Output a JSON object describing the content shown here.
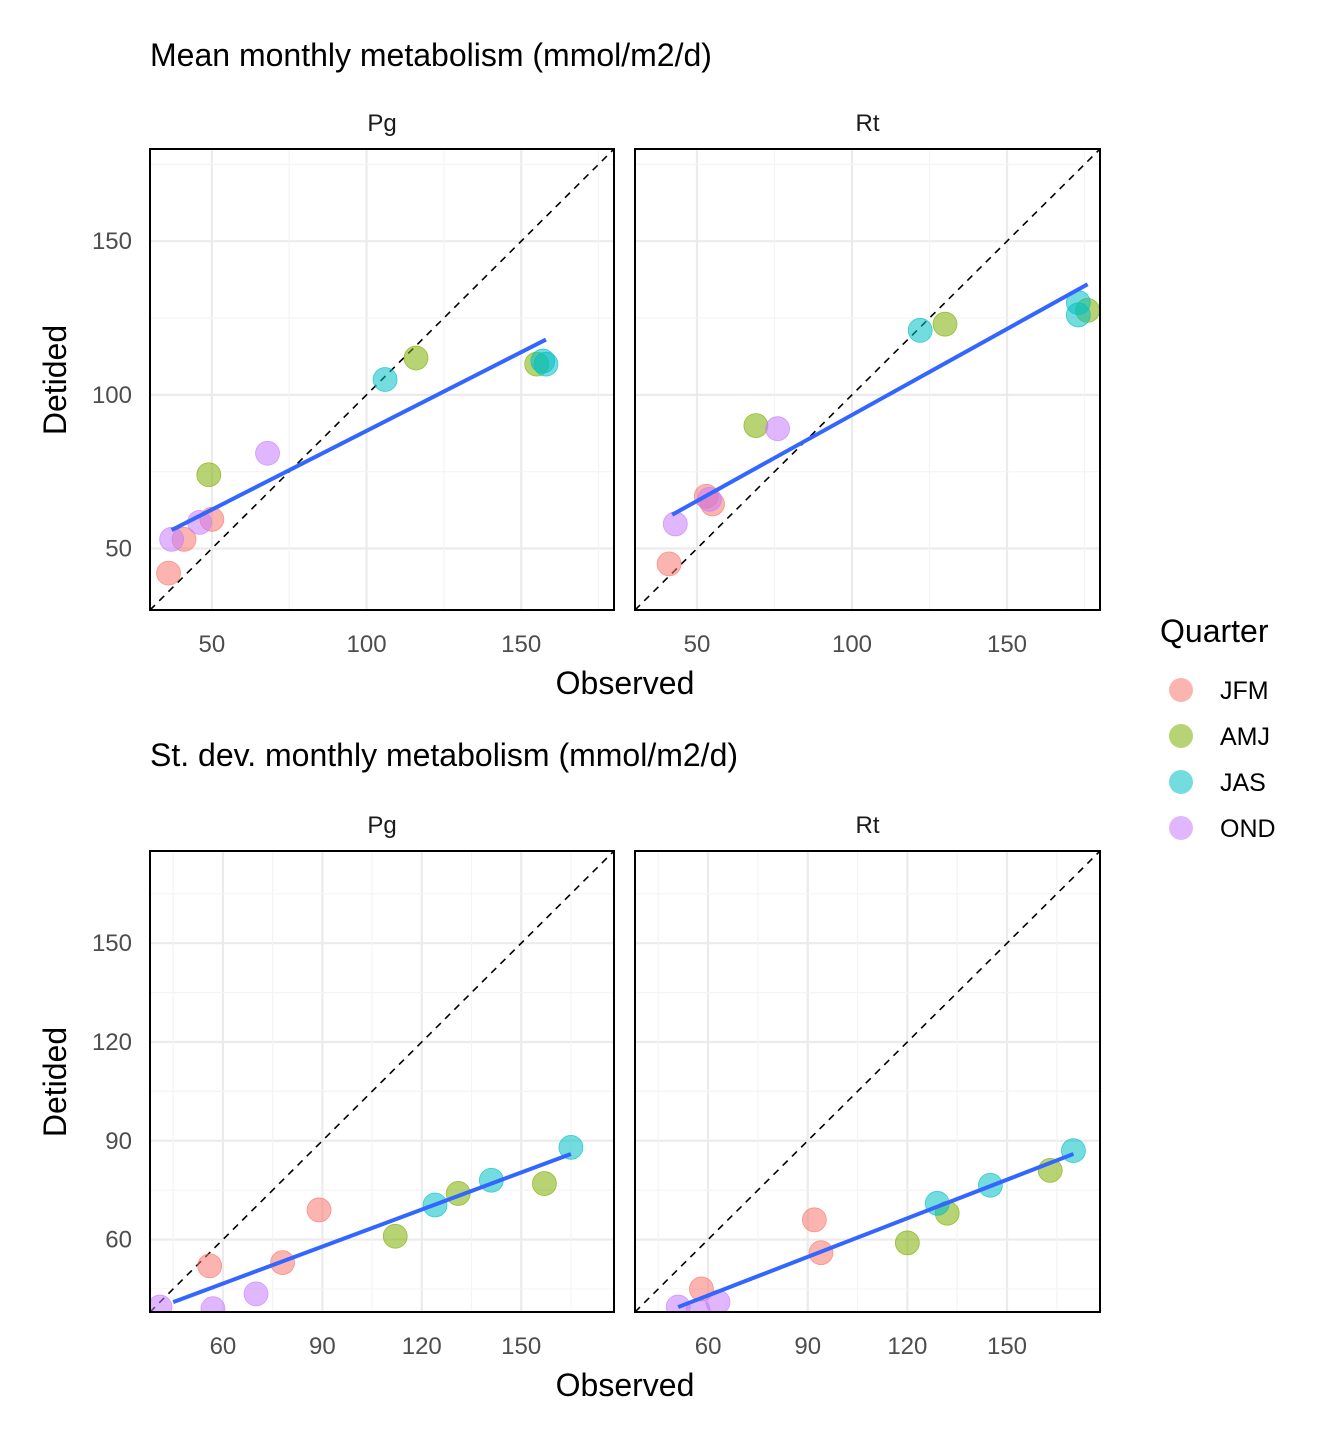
{
  "legend": {
    "title": "Quarter",
    "items": [
      {
        "label": "JFM",
        "color": "#F8766D"
      },
      {
        "label": "AMJ",
        "color": "#7CAE00"
      },
      {
        "label": "JAS",
        "color": "#00BFC4"
      },
      {
        "label": "OND",
        "color": "#C77CFF"
      }
    ]
  },
  "chart_data": [
    {
      "type": "scatter",
      "title": "Mean monthly metabolism (mmol/m2/d)",
      "xlabel": "Observed",
      "ylabel": "Detided",
      "facets": [
        "Pg",
        "Rt"
      ],
      "xlim": [
        30,
        180
      ],
      "ylim": [
        30,
        180
      ],
      "xticks": [
        50,
        100,
        150
      ],
      "yticks": [
        50,
        100,
        150
      ],
      "reference_line": "y = x (dashed)",
      "fit_line": "linear (blue)",
      "panels": [
        {
          "facet": "Pg",
          "points": [
            {
              "x": 36,
              "y": 42,
              "quarter": "JFM"
            },
            {
              "x": 41,
              "y": 53,
              "quarter": "JFM"
            },
            {
              "x": 50,
              "y": 59.5,
              "quarter": "JFM"
            },
            {
              "x": 49,
              "y": 74,
              "quarter": "AMJ"
            },
            {
              "x": 116,
              "y": 112,
              "quarter": "AMJ"
            },
            {
              "x": 155,
              "y": 110,
              "quarter": "AMJ"
            },
            {
              "x": 106,
              "y": 105,
              "quarter": "JAS"
            },
            {
              "x": 157,
              "y": 111,
              "quarter": "JAS"
            },
            {
              "x": 158,
              "y": 110,
              "quarter": "JAS"
            },
            {
              "x": 37,
              "y": 53,
              "quarter": "OND"
            },
            {
              "x": 46,
              "y": 58.5,
              "quarter": "OND"
            },
            {
              "x": 68,
              "y": 81,
              "quarter": "OND"
            }
          ],
          "fit": [
            {
              "x": 37,
              "y": 56
            },
            {
              "x": 158,
              "y": 118
            }
          ]
        },
        {
          "facet": "Rt",
          "points": [
            {
              "x": 41,
              "y": 45,
              "quarter": "JFM"
            },
            {
              "x": 53,
              "y": 67,
              "quarter": "JFM"
            },
            {
              "x": 55,
              "y": 64.5,
              "quarter": "JFM"
            },
            {
              "x": 69,
              "y": 90,
              "quarter": "AMJ"
            },
            {
              "x": 130,
              "y": 123,
              "quarter": "AMJ"
            },
            {
              "x": 176,
              "y": 127.5,
              "quarter": "AMJ"
            },
            {
              "x": 122,
              "y": 121,
              "quarter": "JAS"
            },
            {
              "x": 173,
              "y": 130,
              "quarter": "JAS"
            },
            {
              "x": 173,
              "y": 126,
              "quarter": "JAS"
            },
            {
              "x": 43,
              "y": 58,
              "quarter": "OND"
            },
            {
              "x": 54,
              "y": 66,
              "quarter": "OND"
            },
            {
              "x": 76,
              "y": 89,
              "quarter": "OND"
            }
          ],
          "fit": [
            {
              "x": 42,
              "y": 61
            },
            {
              "x": 176,
              "y": 136
            }
          ]
        }
      ]
    },
    {
      "type": "scatter",
      "title": "St. dev. monthly metabolism (mmol/m2/d)",
      "xlabel": "Observed",
      "ylabel": "Detided",
      "facets": [
        "Pg",
        "Rt"
      ],
      "xlim": [
        38,
        178
      ],
      "ylim": [
        38,
        178
      ],
      "xticks": [
        60,
        90,
        120,
        150
      ],
      "yticks": [
        60,
        90,
        120,
        150
      ],
      "reference_line": "y = x (dashed)",
      "fit_line": "linear (blue)",
      "panels": [
        {
          "facet": "Pg",
          "points": [
            {
              "x": 56,
              "y": 52,
              "quarter": "JFM"
            },
            {
              "x": 78,
              "y": 53,
              "quarter": "JFM"
            },
            {
              "x": 89,
              "y": 69,
              "quarter": "JFM"
            },
            {
              "x": 112,
              "y": 61,
              "quarter": "AMJ"
            },
            {
              "x": 131,
              "y": 74,
              "quarter": "AMJ"
            },
            {
              "x": 157,
              "y": 77,
              "quarter": "AMJ"
            },
            {
              "x": 124,
              "y": 70.5,
              "quarter": "JAS"
            },
            {
              "x": 141,
              "y": 78,
              "quarter": "JAS"
            },
            {
              "x": 165,
              "y": 88,
              "quarter": "JAS"
            },
            {
              "x": 41,
              "y": 39.5,
              "quarter": "OND"
            },
            {
              "x": 57,
              "y": 39,
              "quarter": "OND"
            },
            {
              "x": 70,
              "y": 43.5,
              "quarter": "OND"
            }
          ],
          "fit": [
            {
              "x": 45,
              "y": 41
            },
            {
              "x": 165,
              "y": 86
            }
          ]
        },
        {
          "facet": "Rt",
          "points": [
            {
              "x": 58,
              "y": 45,
              "quarter": "JFM"
            },
            {
              "x": 92,
              "y": 66,
              "quarter": "JFM"
            },
            {
              "x": 94,
              "y": 56,
              "quarter": "JFM"
            },
            {
              "x": 120,
              "y": 59,
              "quarter": "AMJ"
            },
            {
              "x": 132,
              "y": 68,
              "quarter": "AMJ"
            },
            {
              "x": 163,
              "y": 81,
              "quarter": "AMJ"
            },
            {
              "x": 129,
              "y": 71,
              "quarter": "JAS"
            },
            {
              "x": 145,
              "y": 76.5,
              "quarter": "JAS"
            },
            {
              "x": 170,
              "y": 87,
              "quarter": "JAS"
            },
            {
              "x": 51,
              "y": 39.5,
              "quarter": "OND"
            },
            {
              "x": 57,
              "y": 38.5,
              "quarter": "OND"
            },
            {
              "x": 63,
              "y": 41,
              "quarter": "OND"
            }
          ],
          "fit": [
            {
              "x": 51,
              "y": 39.5
            },
            {
              "x": 170,
              "y": 86
            }
          ]
        }
      ]
    }
  ]
}
